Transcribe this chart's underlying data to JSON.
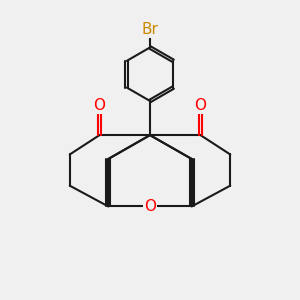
{
  "bg_color": "#f0f0f0",
  "bond_color": "#1a1a1a",
  "O_color": "#ff0000",
  "Br_color": "#cc8800",
  "bond_width": 1.5,
  "figsize": [
    3.0,
    3.0
  ],
  "dpi": 100,
  "xlim": [
    0,
    10
  ],
  "ylim": [
    0,
    10
  ]
}
